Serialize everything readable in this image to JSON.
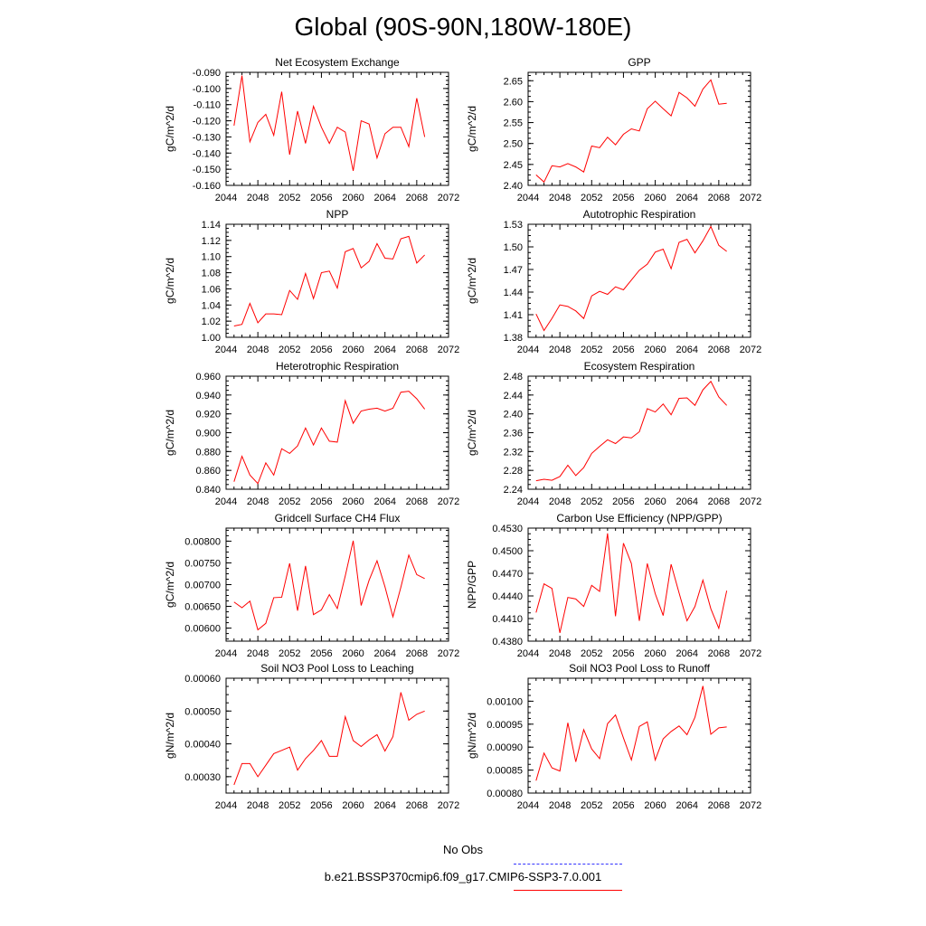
{
  "title": "Global (90S-90N,180W-180E)",
  "legend": {
    "entries": [
      {
        "label": "No Obs",
        "color": "#3333ff",
        "style": "dashed"
      },
      {
        "label": "b.e21.BSSP370cmip6.f09_g17.CMIP6-SSP3-7.0.001",
        "color": "#ff0000",
        "style": "solid"
      }
    ]
  },
  "chart_data": [
    {
      "type": "line",
      "title": "Net Ecosystem Exchange",
      "ylabel": "gC/m^2/d",
      "xlabel": "",
      "xlim": [
        2044,
        2072
      ],
      "xticks": [
        2044,
        2048,
        2052,
        2056,
        2060,
        2064,
        2068,
        2072
      ],
      "ylim": [
        -0.16,
        -0.09
      ],
      "yticks": [
        -0.16,
        -0.15,
        -0.14,
        -0.13,
        -0.12,
        -0.11,
        -0.1,
        -0.09
      ],
      "ydecimals": 3,
      "series": [
        {
          "color": "#ff0000",
          "x": [
            2045,
            2046,
            2047,
            2048,
            2049,
            2050,
            2051,
            2052,
            2053,
            2054,
            2055,
            2056,
            2057,
            2058,
            2059,
            2060,
            2061,
            2062,
            2063,
            2064,
            2065,
            2066,
            2067,
            2068,
            2069
          ],
          "y": [
            -0.123,
            -0.092,
            -0.133,
            -0.121,
            -0.116,
            -0.129,
            -0.102,
            -0.141,
            -0.114,
            -0.134,
            -0.111,
            -0.124,
            -0.134,
            -0.124,
            -0.127,
            -0.151,
            -0.12,
            -0.122,
            -0.143,
            -0.128,
            -0.124,
            -0.124,
            -0.136,
            -0.106,
            -0.13
          ]
        }
      ]
    },
    {
      "type": "line",
      "title": "GPP",
      "ylabel": "gC/m^2/d",
      "xlabel": "",
      "xlim": [
        2044,
        2072
      ],
      "xticks": [
        2044,
        2048,
        2052,
        2056,
        2060,
        2064,
        2068,
        2072
      ],
      "ylim": [
        2.4,
        2.67
      ],
      "yticks": [
        2.4,
        2.45,
        2.5,
        2.55,
        2.6,
        2.65
      ],
      "ydecimals": 2,
      "series": [
        {
          "color": "#ff0000",
          "x": [
            2045,
            2046,
            2047,
            2048,
            2049,
            2050,
            2051,
            2052,
            2053,
            2054,
            2055,
            2056,
            2057,
            2058,
            2059,
            2060,
            2061,
            2062,
            2063,
            2064,
            2065,
            2066,
            2067,
            2068,
            2069
          ],
          "y": [
            2.425,
            2.408,
            2.447,
            2.444,
            2.452,
            2.444,
            2.432,
            2.494,
            2.49,
            2.515,
            2.497,
            2.522,
            2.535,
            2.53,
            2.583,
            2.601,
            2.583,
            2.566,
            2.622,
            2.609,
            2.589,
            2.63,
            2.652,
            2.594,
            2.596
          ]
        }
      ]
    },
    {
      "type": "line",
      "title": "NPP",
      "ylabel": "gC/m^2/d",
      "xlabel": "",
      "xlim": [
        2044,
        2072
      ],
      "xticks": [
        2044,
        2048,
        2052,
        2056,
        2060,
        2064,
        2068,
        2072
      ],
      "ylim": [
        1.0,
        1.14
      ],
      "yticks": [
        1.0,
        1.02,
        1.04,
        1.06,
        1.08,
        1.1,
        1.12,
        1.14
      ],
      "ydecimals": 2,
      "series": [
        {
          "color": "#ff0000",
          "x": [
            2045,
            2046,
            2047,
            2048,
            2049,
            2050,
            2051,
            2052,
            2053,
            2054,
            2055,
            2056,
            2057,
            2058,
            2059,
            2060,
            2061,
            2062,
            2063,
            2064,
            2065,
            2066,
            2067,
            2068,
            2069
          ],
          "y": [
            1.014,
            1.016,
            1.042,
            1.018,
            1.029,
            1.029,
            1.028,
            1.058,
            1.047,
            1.079,
            1.048,
            1.08,
            1.082,
            1.061,
            1.106,
            1.11,
            1.086,
            1.094,
            1.116,
            1.098,
            1.097,
            1.122,
            1.125,
            1.092,
            1.102
          ]
        }
      ]
    },
    {
      "type": "line",
      "title": "Autotrophic Respiration",
      "ylabel": "gC/m^2/d",
      "xlabel": "",
      "xlim": [
        2044,
        2072
      ],
      "xticks": [
        2044,
        2048,
        2052,
        2056,
        2060,
        2064,
        2068,
        2072
      ],
      "ylim": [
        1.38,
        1.53
      ],
      "yticks": [
        1.38,
        1.41,
        1.44,
        1.47,
        1.5,
        1.53
      ],
      "ydecimals": 2,
      "series": [
        {
          "color": "#ff0000",
          "x": [
            2045,
            2046,
            2047,
            2048,
            2049,
            2050,
            2051,
            2052,
            2053,
            2054,
            2055,
            2056,
            2057,
            2058,
            2059,
            2060,
            2061,
            2062,
            2063,
            2064,
            2065,
            2066,
            2067,
            2068,
            2069
          ],
          "y": [
            1.411,
            1.389,
            1.405,
            1.423,
            1.421,
            1.415,
            1.405,
            1.435,
            1.441,
            1.437,
            1.447,
            1.443,
            1.456,
            1.469,
            1.477,
            1.493,
            1.497,
            1.471,
            1.506,
            1.51,
            1.492,
            1.508,
            1.527,
            1.502,
            1.494
          ]
        }
      ]
    },
    {
      "type": "line",
      "title": "Heterotrophic Respiration",
      "ylabel": "gC/m^2/d",
      "xlabel": "",
      "xlim": [
        2044,
        2072
      ],
      "xticks": [
        2044,
        2048,
        2052,
        2056,
        2060,
        2064,
        2068,
        2072
      ],
      "ylim": [
        0.84,
        0.96
      ],
      "yticks": [
        0.84,
        0.86,
        0.88,
        0.9,
        0.92,
        0.94,
        0.96
      ],
      "ydecimals": 3,
      "series": [
        {
          "color": "#ff0000",
          "x": [
            2045,
            2046,
            2047,
            2048,
            2049,
            2050,
            2051,
            2052,
            2053,
            2054,
            2055,
            2056,
            2057,
            2058,
            2059,
            2060,
            2061,
            2062,
            2063,
            2064,
            2065,
            2066,
            2067,
            2068,
            2069
          ],
          "y": [
            0.848,
            0.875,
            0.855,
            0.846,
            0.868,
            0.855,
            0.883,
            0.878,
            0.886,
            0.905,
            0.887,
            0.905,
            0.891,
            0.89,
            0.934,
            0.91,
            0.923,
            0.925,
            0.926,
            0.923,
            0.926,
            0.943,
            0.944,
            0.936,
            0.925
          ]
        }
      ]
    },
    {
      "type": "line",
      "title": "Ecosystem Respiration",
      "ylabel": "gC/m^2/d",
      "xlabel": "",
      "xlim": [
        2044,
        2072
      ],
      "xticks": [
        2044,
        2048,
        2052,
        2056,
        2060,
        2064,
        2068,
        2072
      ],
      "ylim": [
        2.24,
        2.48
      ],
      "yticks": [
        2.24,
        2.28,
        2.32,
        2.36,
        2.4,
        2.44,
        2.48
      ],
      "ydecimals": 2,
      "series": [
        {
          "color": "#ff0000",
          "x": [
            2045,
            2046,
            2047,
            2048,
            2049,
            2050,
            2051,
            2052,
            2053,
            2054,
            2055,
            2056,
            2057,
            2058,
            2059,
            2060,
            2061,
            2062,
            2063,
            2064,
            2065,
            2066,
            2067,
            2068,
            2069
          ],
          "y": [
            2.258,
            2.261,
            2.259,
            2.267,
            2.291,
            2.269,
            2.286,
            2.316,
            2.331,
            2.345,
            2.337,
            2.351,
            2.349,
            2.362,
            2.411,
            2.404,
            2.421,
            2.398,
            2.433,
            2.434,
            2.418,
            2.451,
            2.469,
            2.436,
            2.418
          ]
        }
      ]
    },
    {
      "type": "line",
      "title": "Gridcell Surface CH4 Flux",
      "ylabel": "gC/m^2/d",
      "xlabel": "",
      "xlim": [
        2044,
        2072
      ],
      "xticks": [
        2044,
        2048,
        2052,
        2056,
        2060,
        2064,
        2068,
        2072
      ],
      "ylim": [
        0.0057,
        0.0083
      ],
      "yticks": [
        0.006,
        0.0065,
        0.007,
        0.0075,
        0.008
      ],
      "ydecimals": 5,
      "series": [
        {
          "color": "#ff0000",
          "x": [
            2045,
            2046,
            2047,
            2048,
            2049,
            2050,
            2051,
            2052,
            2053,
            2054,
            2055,
            2056,
            2057,
            2058,
            2059,
            2060,
            2061,
            2062,
            2063,
            2064,
            2065,
            2066,
            2067,
            2068,
            2069
          ],
          "y": [
            0.0066,
            0.00647,
            0.00662,
            0.00596,
            0.00611,
            0.0067,
            0.00671,
            0.00749,
            0.0064,
            0.00743,
            0.00631,
            0.00642,
            0.00677,
            0.00645,
            0.0072,
            0.00801,
            0.00652,
            0.0071,
            0.00755,
            0.00695,
            0.00626,
            0.00694,
            0.00768,
            0.00723,
            0.00714
          ]
        }
      ]
    },
    {
      "type": "line",
      "title": "Carbon Use Efficiency (NPP/GPP)",
      "ylabel": "NPP/GPP",
      "xlabel": "",
      "xlim": [
        2044,
        2072
      ],
      "xticks": [
        2044,
        2048,
        2052,
        2056,
        2060,
        2064,
        2068,
        2072
      ],
      "ylim": [
        0.438,
        0.453
      ],
      "yticks": [
        0.438,
        0.441,
        0.444,
        0.447,
        0.45,
        0.453
      ],
      "ydecimals": 4,
      "series": [
        {
          "color": "#ff0000",
          "x": [
            2045,
            2046,
            2047,
            2048,
            2049,
            2050,
            2051,
            2052,
            2053,
            2054,
            2055,
            2056,
            2057,
            2058,
            2059,
            2060,
            2061,
            2062,
            2063,
            2064,
            2065,
            2066,
            2067,
            2068,
            2069
          ],
          "y": [
            0.4418,
            0.4456,
            0.445,
            0.4391,
            0.4438,
            0.4436,
            0.4426,
            0.4454,
            0.4446,
            0.4523,
            0.4413,
            0.451,
            0.4483,
            0.4407,
            0.4483,
            0.4443,
            0.4414,
            0.4482,
            0.4444,
            0.4407,
            0.4426,
            0.4461,
            0.4423,
            0.4397,
            0.4447
          ]
        }
      ]
    },
    {
      "type": "line",
      "title": "Soil NO3 Pool Loss to Leaching",
      "ylabel": "gN/m^2/d",
      "xlabel": "",
      "xlim": [
        2044,
        2072
      ],
      "xticks": [
        2044,
        2048,
        2052,
        2056,
        2060,
        2064,
        2068,
        2072
      ],
      "ylim": [
        0.00025,
        0.0006
      ],
      "yticks": [
        0.0003,
        0.0004,
        0.0005,
        0.0006
      ],
      "ydecimals": 5,
      "series": [
        {
          "color": "#ff0000",
          "x": [
            2045,
            2046,
            2047,
            2048,
            2049,
            2050,
            2051,
            2052,
            2053,
            2054,
            2055,
            2056,
            2057,
            2058,
            2059,
            2060,
            2061,
            2062,
            2063,
            2064,
            2065,
            2066,
            2067,
            2068,
            2069
          ],
          "y": [
            0.000275,
            0.00034,
            0.00034,
            0.0003,
            0.000335,
            0.00037,
            0.00038,
            0.00039,
            0.00032,
            0.000355,
            0.00038,
            0.00041,
            0.000362,
            0.000362,
            0.000483,
            0.00041,
            0.000392,
            0.000412,
            0.000428,
            0.000378,
            0.000422,
            0.000557,
            0.000472,
            0.00049,
            0.0005
          ]
        }
      ]
    },
    {
      "type": "line",
      "title": "Soil NO3 Pool Loss to Runoff",
      "ylabel": "gN/m^2/d",
      "xlabel": "",
      "xlim": [
        2044,
        2072
      ],
      "xticks": [
        2044,
        2048,
        2052,
        2056,
        2060,
        2064,
        2068,
        2072
      ],
      "ylim": [
        0.0008,
        0.00105
      ],
      "yticks": [
        0.0008,
        0.00085,
        0.0009,
        0.00095,
        0.001
      ],
      "ydecimals": 5,
      "series": [
        {
          "color": "#ff0000",
          "x": [
            2045,
            2046,
            2047,
            2048,
            2049,
            2050,
            2051,
            2052,
            2053,
            2054,
            2055,
            2056,
            2057,
            2058,
            2059,
            2060,
            2061,
            2062,
            2063,
            2064,
            2065,
            2066,
            2067,
            2068,
            2069
          ],
          "y": [
            0.000827,
            0.000887,
            0.000855,
            0.000848,
            0.000953,
            0.000868,
            0.000938,
            0.000896,
            0.000875,
            0.000951,
            0.00097,
            0.00092,
            0.000872,
            0.000945,
            0.000955,
            0.000872,
            0.000918,
            0.000934,
            0.000946,
            0.000927,
            0.000965,
            0.001033,
            0.000928,
            0.000942,
            0.000944
          ]
        }
      ]
    }
  ]
}
